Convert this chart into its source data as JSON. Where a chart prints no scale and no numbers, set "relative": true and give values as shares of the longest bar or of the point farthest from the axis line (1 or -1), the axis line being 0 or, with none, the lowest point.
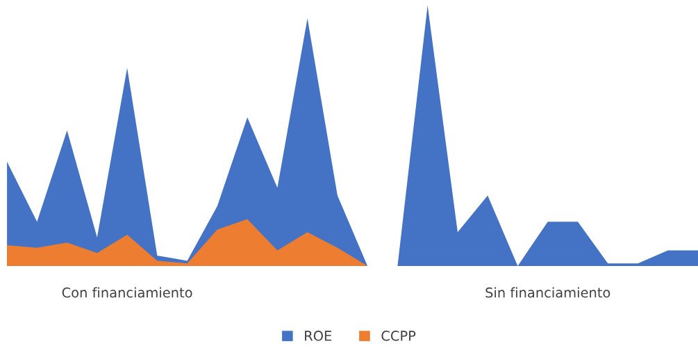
{
  "chart_data": {
    "type": "area",
    "relative": true,
    "legend": "bottom",
    "grid": false,
    "categories": [
      null,
      null,
      null,
      null,
      "Con financiamiento",
      null,
      null,
      null,
      null,
      null,
      null,
      null,
      null,
      null,
      null,
      null,
      null,
      null,
      "Sin financiamiento",
      null,
      null,
      null,
      null,
      null
    ],
    "series": [
      {
        "name": "ROE",
        "color": "#4472c4",
        "values": [
          0.4,
          0.17,
          0.52,
          0.11,
          0.76,
          0.04,
          0.02,
          0.23,
          0.57,
          0.3,
          0.95,
          0.27,
          0,
          0,
          1,
          0.13,
          0.27,
          0,
          0.17,
          0.17,
          0.01,
          0.01,
          0.06,
          0.06
        ]
      },
      {
        "name": "CCPP",
        "color": "#ed7d31",
        "values": [
          0.08,
          0.07,
          0.09,
          0.05,
          0.12,
          0.02,
          0.01,
          0.14,
          0.18,
          0.06,
          0.13,
          0.07,
          0,
          null,
          null,
          null,
          null,
          null,
          null,
          null,
          null,
          null,
          null,
          null
        ]
      }
    ]
  }
}
